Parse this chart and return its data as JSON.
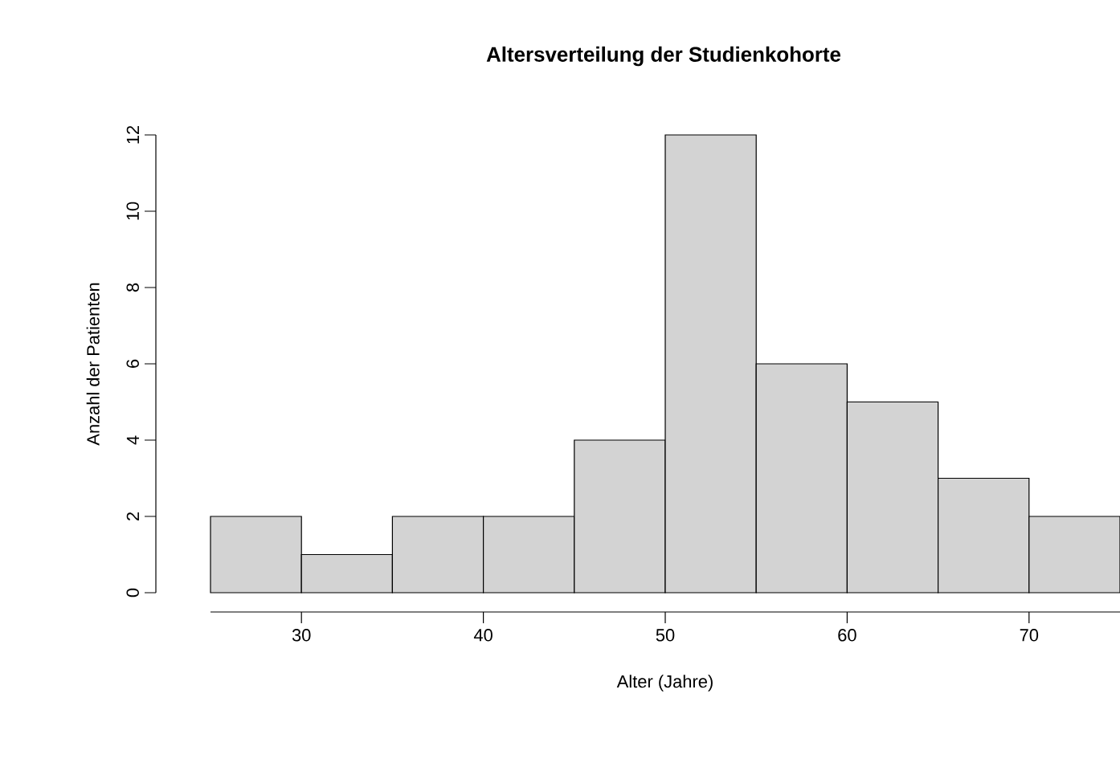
{
  "chart_data": {
    "type": "histogram",
    "title": "Altersverteilung der Studienkohorte",
    "xlabel": "Alter (Jahre)",
    "ylabel": "Anzahl der Patienten",
    "bins": [
      25,
      30,
      35,
      40,
      45,
      50,
      55,
      60,
      65,
      70,
      75
    ],
    "values": [
      2,
      1,
      2,
      2,
      4,
      12,
      6,
      5,
      3,
      2
    ],
    "color": "#d3d3d3",
    "xlim": [
      25,
      75
    ],
    "ylim": [
      0,
      12
    ],
    "xticks": [
      30,
      40,
      50,
      60,
      70
    ],
    "yticks": [
      0,
      2,
      4,
      6,
      8,
      10,
      12
    ]
  }
}
